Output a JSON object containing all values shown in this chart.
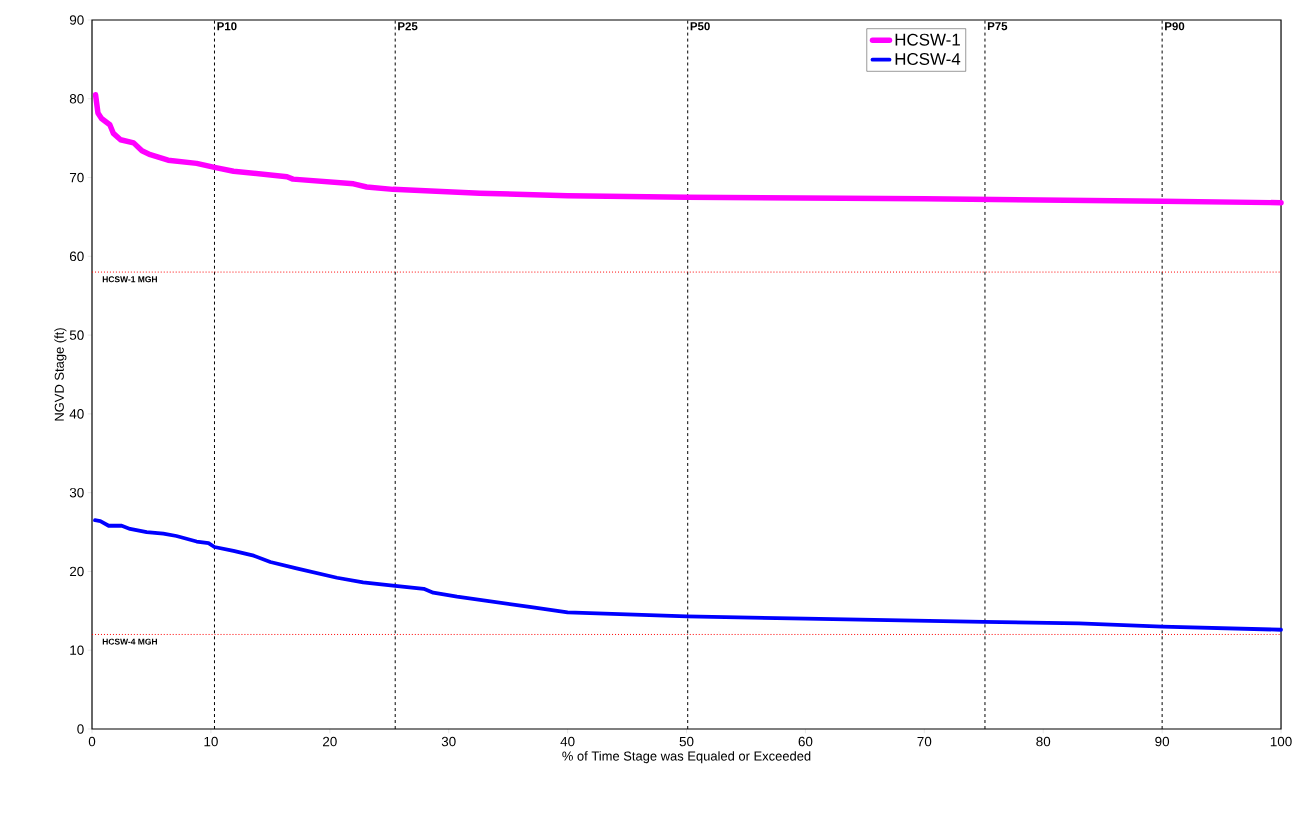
{
  "chart_data": {
    "type": "line",
    "xlabel": "% of Time Stage was Equaled or Exceeded",
    "ylabel": "NGVD Stage (ft)",
    "xlim": [
      0,
      100
    ],
    "ylim": [
      0,
      90
    ],
    "xticks": [
      0,
      10,
      20,
      30,
      40,
      50,
      60,
      70,
      80,
      90,
      100
    ],
    "yticks": [
      0,
      10,
      20,
      30,
      40,
      50,
      60,
      70,
      80,
      90
    ],
    "grid": false,
    "legend": "top right",
    "marker": "none",
    "line_style": "solid",
    "series": [
      {
        "name": "HCSW-1",
        "color": "#ff00ff",
        "x": [
          0.3,
          0.5,
          0.8,
          1.5,
          1.8,
          2.4,
          3.5,
          4.2,
          4.9,
          6.4,
          8.8,
          10.3,
          11.9,
          16.4,
          16.9,
          22,
          23.1,
          25.3,
          32.6,
          40,
          50,
          70,
          90,
          100
        ],
        "values": [
          80.5,
          78.2,
          77.5,
          76.7,
          75.6,
          74.8,
          74.4,
          73.4,
          72.9,
          72.2,
          71.8,
          71.3,
          70.8,
          70.1,
          69.8,
          69.2,
          68.8,
          68.5,
          68.0,
          67.7,
          67.5,
          67.3,
          67.0,
          66.8
        ]
      },
      {
        "name": "HCSW-4",
        "color": "#0000ff",
        "x": [
          0.25,
          0.7,
          1.4,
          2.5,
          3.2,
          4.6,
          6.0,
          7.1,
          8.8,
          9.8,
          10.3,
          11.9,
          13.6,
          15.0,
          17.2,
          20.6,
          22.8,
          25.3,
          27.9,
          28.7,
          30.7,
          36.8,
          40,
          50,
          60,
          75,
          83,
          90,
          100
        ],
        "values": [
          26.5,
          26.4,
          25.8,
          25.8,
          25.4,
          25.0,
          24.8,
          24.5,
          23.8,
          23.6,
          23.1,
          22.6,
          22.0,
          21.2,
          20.4,
          19.2,
          18.6,
          18.2,
          17.8,
          17.3,
          16.8,
          15.5,
          14.8,
          14.3,
          14.0,
          13.6,
          13.4,
          13.0,
          12.6
        ]
      }
    ],
    "ref_lines": [
      {
        "axis": "x",
        "value": 10.3,
        "label": "P10",
        "color": "#000000",
        "line_style": "dashed"
      },
      {
        "axis": "x",
        "value": 25.5,
        "label": "P25",
        "color": "#000000",
        "line_style": "dashed"
      },
      {
        "axis": "x",
        "value": 50.1,
        "label": "P50",
        "color": "#000000",
        "line_style": "dashed"
      },
      {
        "axis": "x",
        "value": 75.1,
        "label": "P75",
        "color": "#000000",
        "line_style": "dashed"
      },
      {
        "axis": "x",
        "value": 90.0,
        "label": "P90",
        "color": "#000000",
        "line_style": "dashed"
      },
      {
        "axis": "y",
        "value": 58,
        "label": "HCSW-1 MGH",
        "color": "#ff0000",
        "line_style": "dotted"
      },
      {
        "axis": "y",
        "value": 12,
        "label": "HCSW-4 MGH",
        "color": "#ff0000",
        "line_style": "dotted"
      }
    ]
  }
}
